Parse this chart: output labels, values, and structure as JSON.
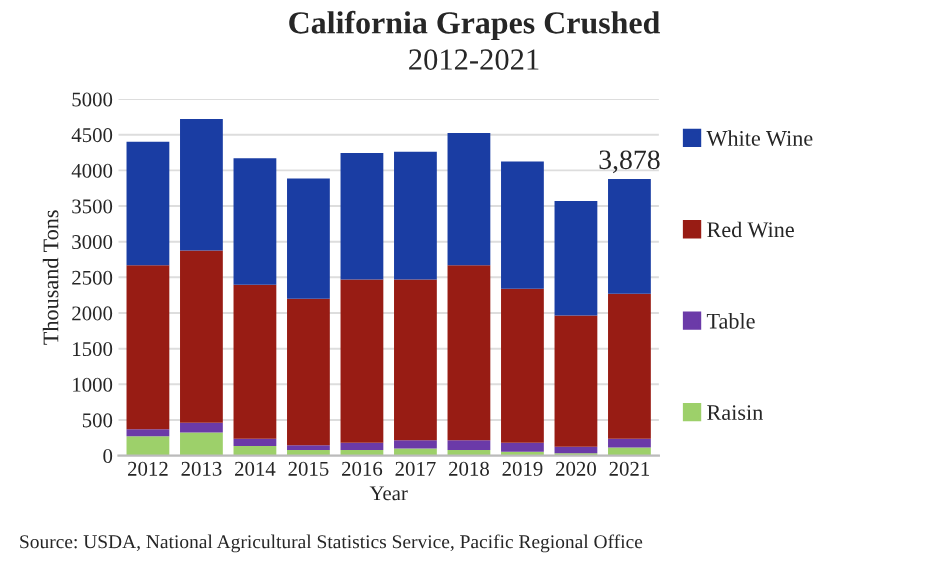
{
  "chart_data": {
    "type": "bar",
    "title": "California Grapes Crushed",
    "subtitle": "2012-2021",
    "xlabel": "Year",
    "ylabel": "Thousand Tons",
    "categories": [
      "2012",
      "2013",
      "2014",
      "2015",
      "2016",
      "2017",
      "2018",
      "2019",
      "2020",
      "2021"
    ],
    "stacked": true,
    "series": [
      {
        "name": "Raisin",
        "color": "#9dd06a",
        "values": [
          270,
          325,
          135,
          80,
          80,
          100,
          80,
          55,
          35,
          115
        ]
      },
      {
        "name": "Table",
        "color": "#6b3aa8",
        "values": [
          100,
          135,
          100,
          65,
          100,
          115,
          135,
          125,
          90,
          120
        ]
      },
      {
        "name": "Red Wine",
        "color": "#981c14",
        "values": [
          2300,
          2415,
          2160,
          2055,
          2290,
          2255,
          2455,
          2160,
          1840,
          2035
        ]
      },
      {
        "name": "White Wine",
        "color": "#1a3da3",
        "values": [
          1730,
          1845,
          1775,
          1685,
          1775,
          1790,
          1855,
          1785,
          1605,
          1608
        ]
      }
    ],
    "totals": [
      null,
      null,
      null,
      null,
      null,
      null,
      null,
      null,
      null,
      "3,878"
    ],
    "ylim": [
      0,
      5000
    ],
    "yticks": [
      0,
      500,
      1000,
      1500,
      2000,
      2500,
      3000,
      3500,
      4000,
      4500,
      5000
    ],
    "grid": "y",
    "legend": "right",
    "annotations": [
      "Source: USDA, National Agricultural Statistics Service, Pacific Regional Office"
    ]
  }
}
